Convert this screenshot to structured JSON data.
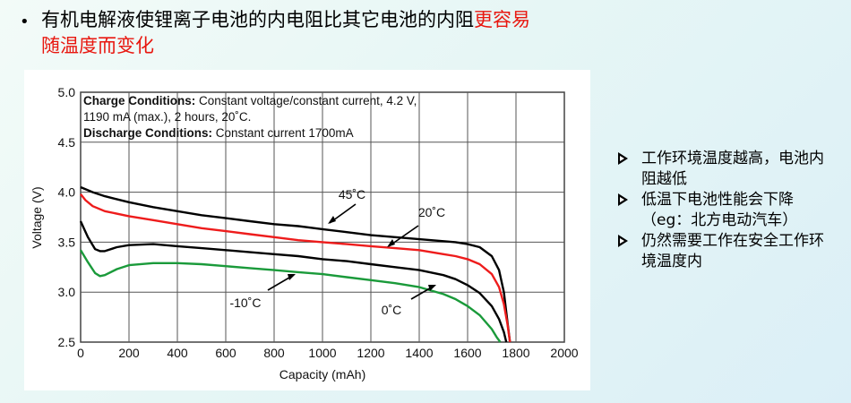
{
  "slide": {
    "bullet": "•",
    "title_black": "有机电解液使锂离子电池的内电阻比其它电池的内阻",
    "title_red": "更容易",
    "title_line2": "随温度而变化"
  },
  "side_points": [
    "工作环境温度越高，电池内阻越低",
    "低温下电池性能会下降（eg：北方电动汽车）",
    "仍然需要工作在安全工作环境温度内"
  ],
  "colors": {
    "accent_red": "#e8170f",
    "curve_black": "#000000",
    "curve_red": "#ee1c1c",
    "curve_green": "#1a9a3a"
  },
  "chart_data": {
    "type": "line",
    "xlabel": "Capacity (mAh)",
    "ylabel": "Voltage (V)",
    "xlim": [
      0,
      2000
    ],
    "ylim": [
      2.5,
      5.0
    ],
    "xticks": [
      "0",
      "200",
      "400",
      "600",
      "800",
      "1000",
      "1200",
      "1400",
      "1600",
      "1800",
      "2000"
    ],
    "yticks": [
      "2.5",
      "3.0",
      "3.5",
      "4.0",
      "4.5",
      "5.0"
    ],
    "conditions": {
      "charge_label": "Charge Conditions:",
      "charge_text": " Constant voltage/constant current, 4.2 V,",
      "charge_text2": "1190 mA (max.), 2 hours, 20˚C.",
      "discharge_label": "Discharge Conditions:",
      "discharge_text": " Constant current 1700mA"
    },
    "series": [
      {
        "name": "45˚C",
        "color": "#000000",
        "x": [
          0,
          50,
          100,
          200,
          300,
          400,
          500,
          600,
          700,
          800,
          900,
          1000,
          1100,
          1200,
          1300,
          1400,
          1500,
          1550,
          1600,
          1650,
          1700,
          1730,
          1750,
          1765,
          1775
        ],
        "y": [
          4.05,
          4.0,
          3.96,
          3.9,
          3.85,
          3.81,
          3.77,
          3.74,
          3.71,
          3.68,
          3.66,
          3.63,
          3.6,
          3.57,
          3.55,
          3.53,
          3.51,
          3.5,
          3.48,
          3.45,
          3.36,
          3.22,
          3.0,
          2.7,
          2.5
        ]
      },
      {
        "name": "20˚C",
        "color": "#ee1c1c",
        "x": [
          0,
          20,
          50,
          100,
          200,
          300,
          400,
          500,
          600,
          700,
          800,
          900,
          1000,
          1100,
          1200,
          1300,
          1400,
          1500,
          1550,
          1600,
          1650,
          1700,
          1730,
          1750,
          1765,
          1775
        ],
        "y": [
          3.98,
          3.92,
          3.86,
          3.81,
          3.76,
          3.72,
          3.68,
          3.64,
          3.61,
          3.58,
          3.55,
          3.52,
          3.5,
          3.48,
          3.46,
          3.44,
          3.42,
          3.38,
          3.36,
          3.33,
          3.28,
          3.18,
          3.05,
          2.88,
          2.68,
          2.5
        ]
      },
      {
        "name": "0˚C",
        "color": "#000000",
        "x": [
          0,
          30,
          60,
          80,
          100,
          150,
          200,
          300,
          400,
          500,
          600,
          700,
          800,
          900,
          1000,
          1100,
          1200,
          1300,
          1400,
          1500,
          1550,
          1600,
          1650,
          1700,
          1730,
          1750,
          1760
        ],
        "y": [
          3.71,
          3.55,
          3.43,
          3.41,
          3.41,
          3.45,
          3.47,
          3.48,
          3.46,
          3.44,
          3.42,
          3.4,
          3.38,
          3.36,
          3.33,
          3.31,
          3.28,
          3.25,
          3.22,
          3.17,
          3.13,
          3.07,
          2.99,
          2.86,
          2.73,
          2.6,
          2.5
        ]
      },
      {
        "name": "-10˚C",
        "color": "#1a9a3a",
        "x": [
          0,
          30,
          60,
          80,
          100,
          150,
          200,
          300,
          400,
          500,
          600,
          700,
          800,
          900,
          1000,
          1100,
          1200,
          1300,
          1400,
          1500,
          1550,
          1600,
          1650,
          1700,
          1720,
          1735
        ],
        "y": [
          3.42,
          3.3,
          3.19,
          3.16,
          3.17,
          3.23,
          3.27,
          3.29,
          3.29,
          3.28,
          3.26,
          3.24,
          3.22,
          3.2,
          3.18,
          3.15,
          3.12,
          3.09,
          3.05,
          2.98,
          2.93,
          2.86,
          2.77,
          2.63,
          2.55,
          2.5
        ]
      }
    ],
    "annotations": [
      "45˚C",
      "20˚C",
      "0˚C",
      "-10˚C"
    ]
  }
}
